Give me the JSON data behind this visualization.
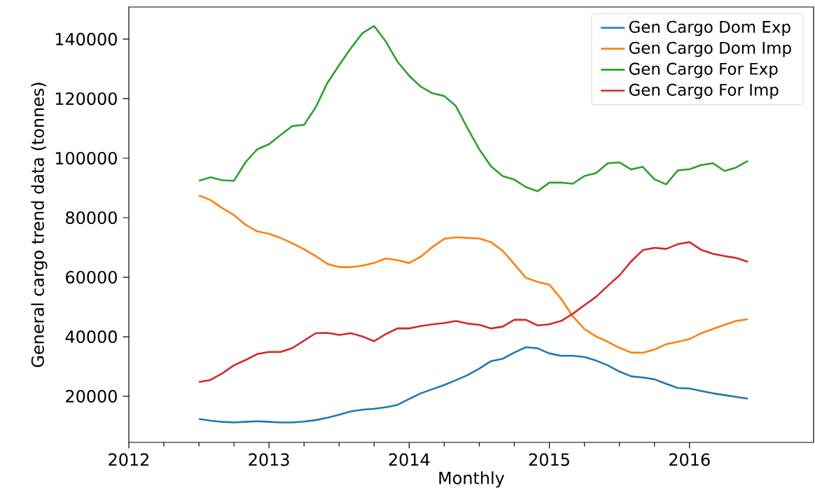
{
  "chart_data": {
    "type": "line",
    "xlabel": "Monthly",
    "ylabel": "General cargo trend data (tonnes)",
    "x": [
      "2012-07",
      "2012-08",
      "2012-09",
      "2012-10",
      "2012-11",
      "2012-12",
      "2013-01",
      "2013-02",
      "2013-03",
      "2013-04",
      "2013-05",
      "2013-06",
      "2013-07",
      "2013-08",
      "2013-09",
      "2013-10",
      "2013-11",
      "2013-12",
      "2014-01",
      "2014-02",
      "2014-03",
      "2014-04",
      "2014-05",
      "2014-06",
      "2014-07",
      "2014-08",
      "2014-09",
      "2014-10",
      "2014-11",
      "2014-12",
      "2015-01",
      "2015-02",
      "2015-03",
      "2015-04",
      "2015-05",
      "2015-06",
      "2015-07",
      "2015-08",
      "2015-09",
      "2015-10",
      "2015-11",
      "2015-12",
      "2016-01",
      "2016-02",
      "2016-03",
      "2016-04",
      "2016-05",
      "2016-06"
    ],
    "series": [
      {
        "name": "Gen Cargo Dom Exp",
        "color": "#1f77b4",
        "values": [
          12400,
          11800,
          11400,
          11200,
          11400,
          11600,
          11400,
          11200,
          11200,
          11500,
          12000,
          12800,
          13800,
          14900,
          15500,
          15800,
          16300,
          17100,
          19100,
          21000,
          22400,
          23800,
          25400,
          27100,
          29300,
          31800,
          32600,
          34700,
          36500,
          36100,
          34400,
          33600,
          33600,
          33200,
          32000,
          30400,
          28300,
          26700,
          26300,
          25700,
          24200,
          22800,
          22600,
          21800,
          21000,
          20400,
          19800,
          19200
        ]
      },
      {
        "name": "Gen Cargo Dom Imp",
        "color": "#ff7f0e",
        "values": [
          87500,
          85900,
          83200,
          80900,
          77600,
          75400,
          74600,
          73200,
          71400,
          69400,
          67100,
          64500,
          63400,
          63400,
          63900,
          64800,
          66300,
          65700,
          64800,
          66900,
          70200,
          72900,
          73400,
          73200,
          73000,
          71800,
          68900,
          64400,
          59800,
          58400,
          57500,
          52800,
          46900,
          42600,
          40100,
          38300,
          36300,
          34700,
          34600,
          35700,
          37500,
          38300,
          39200,
          41200,
          42600,
          44000,
          45300,
          45900
        ]
      },
      {
        "name": "Gen Cargo For Exp",
        "color": "#2ca02c",
        "values": [
          92400,
          93600,
          92600,
          92400,
          98700,
          103000,
          104700,
          107800,
          110800,
          111200,
          117100,
          125300,
          131200,
          136900,
          142000,
          144400,
          139200,
          132400,
          127700,
          124000,
          121800,
          120900,
          117500,
          110000,
          103000,
          97300,
          94000,
          92800,
          90300,
          88900,
          91800,
          91800,
          91400,
          94000,
          95000,
          98300,
          98600,
          96200,
          97100,
          92900,
          91200,
          95900,
          96300,
          97700,
          98300,
          95700,
          96900,
          99100
        ]
      },
      {
        "name": "Gen Cargo For Imp",
        "color": "#d62728",
        "values": [
          24800,
          25500,
          27700,
          30400,
          32200,
          34200,
          34900,
          34900,
          36200,
          38700,
          41200,
          41300,
          40600,
          41200,
          40100,
          38500,
          40900,
          42800,
          42800,
          43600,
          44200,
          44600,
          45300,
          44400,
          44000,
          42800,
          43400,
          45700,
          45700,
          43800,
          44200,
          45300,
          47700,
          50600,
          53400,
          57100,
          60600,
          65300,
          69100,
          69900,
          69500,
          71100,
          71800,
          69200,
          67900,
          67100,
          66500,
          65200
        ]
      }
    ],
    "xlim": [
      "2012-01-01",
      "2016-11-20"
    ],
    "xticks": [
      {
        "value": "2012",
        "label": "2012"
      },
      {
        "value": "2013",
        "label": "2013"
      },
      {
        "value": "2014",
        "label": "2014"
      },
      {
        "value": "2015",
        "label": "2015"
      },
      {
        "value": "2016",
        "label": "2016"
      }
    ],
    "ylim": [
      4500,
      150800
    ],
    "yticks": [
      20000,
      40000,
      60000,
      80000,
      100000,
      120000,
      140000
    ],
    "legend": "top right",
    "grid": false
  }
}
